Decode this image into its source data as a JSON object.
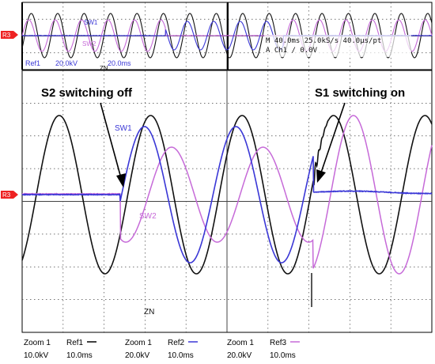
{
  "colors": {
    "sw1": "#3a37d6",
    "sw2": "#c66ad8",
    "zn": "#111111",
    "grid": "#444444",
    "marker_bg": "#ee2222"
  },
  "chart_data": [
    {
      "type": "line",
      "view": "overview",
      "t_range_ms": [
        0,
        400
      ],
      "series": [
        {
          "name": "SW1",
          "color": "#3a37d6",
          "events": "off at 140 ms, on at 255 ms"
        },
        {
          "name": "SW2",
          "color": "#c66ad8",
          "events": "on at 140 ms, off at 255 ms"
        },
        {
          "name": "ZN",
          "color": "#111111"
        }
      ]
    },
    {
      "type": "line",
      "view": "zoom",
      "t_range_ms": [
        0,
        100
      ],
      "series": [
        {
          "name": "SW1",
          "color": "#3a37d6"
        },
        {
          "name": "SW2",
          "color": "#c66ad8"
        },
        {
          "name": "ZN",
          "color": "#111111"
        }
      ],
      "annotations": [
        "S2 switching off",
        "S1 switching on"
      ]
    }
  ],
  "top": {
    "marker": "R3",
    "labels": {
      "sw1": "SW1",
      "sw2": "SW2",
      "zn": "ZN"
    },
    "ref1": "Ref1",
    "ref1_scale": "20.0kV",
    "ref1_time": "20.0ms",
    "readout_line1": "M 40.0ms 25.0kS/s   40.0µs/pt",
    "readout_line2": "A  Ch1  ∕  0.0V"
  },
  "main": {
    "marker": "R3",
    "annotation_left": "S2 switching off",
    "annotation_right": "S1 switching on",
    "labels": {
      "sw1": "SW1",
      "sw2": "SW2",
      "zn": "ZN"
    }
  },
  "bottom": {
    "c1": {
      "zoom": "Zoom 1",
      "ref": "Ref1",
      "scale": "10.0kV",
      "time": "10.0ms"
    },
    "c2": {
      "zoom": "Zoom 1",
      "ref": "Ref2",
      "scale": "20.0kV",
      "time": "10.0ms"
    },
    "c3": {
      "zoom": "Zoom 1",
      "ref": "Ref3",
      "scale": "20.0kV",
      "time": "10.0ms"
    }
  }
}
